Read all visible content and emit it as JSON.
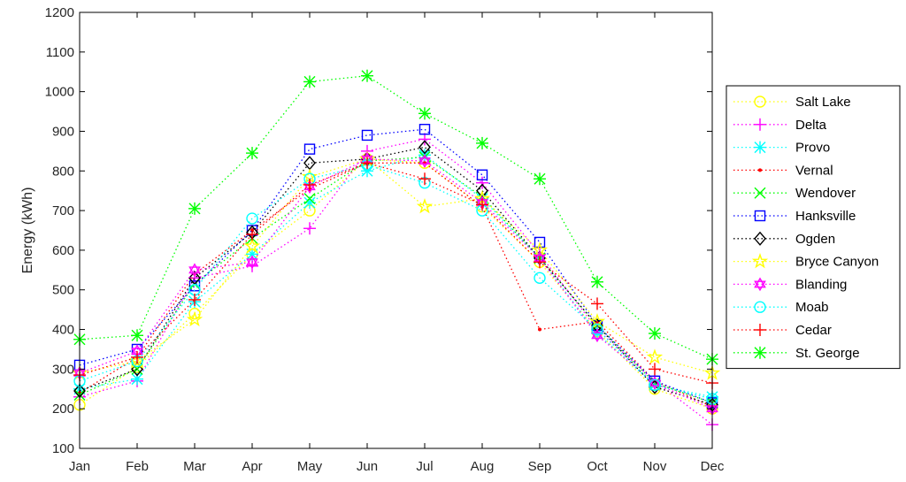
{
  "chart_data": {
    "type": "line",
    "title": "",
    "xlabel": "",
    "ylabel": "Energy (kWh)",
    "categories": [
      "Jan",
      "Feb",
      "Mar",
      "Apr",
      "May",
      "Jun",
      "Jul",
      "Aug",
      "Sep",
      "Oct",
      "Nov",
      "Dec"
    ],
    "ylim": [
      100,
      1200
    ],
    "yticks": [
      100,
      200,
      300,
      400,
      500,
      600,
      700,
      800,
      900,
      1000,
      1100,
      1200
    ],
    "grid": false,
    "legend_position": "right",
    "line_style": "dotted",
    "series": [
      {
        "name": "Salt Lake",
        "color": "#ffff00",
        "marker": "circle",
        "values": [
          210,
          305,
          440,
          590,
          700,
          830,
          820,
          710,
          570,
          395,
          250,
          200
        ]
      },
      {
        "name": "Delta",
        "color": "#ff00ff",
        "marker": "plus",
        "values": [
          230,
          270,
          530,
          560,
          655,
          850,
          880,
          770,
          590,
          400,
          270,
          160
        ]
      },
      {
        "name": "Provo",
        "color": "#00ffff",
        "marker": "asterisk",
        "values": [
          250,
          275,
          470,
          590,
          720,
          800,
          840,
          730,
          580,
          390,
          260,
          230
        ]
      },
      {
        "name": "Vernal",
        "color": "#ff0000",
        "marker": "dot",
        "values": [
          240,
          330,
          540,
          650,
          755,
          820,
          820,
          710,
          400,
          420,
          270,
          205
        ]
      },
      {
        "name": "Wendover",
        "color": "#00ff00",
        "marker": "x",
        "values": [
          235,
          300,
          515,
          630,
          730,
          825,
          835,
          735,
          580,
          410,
          265,
          215
        ]
      },
      {
        "name": "Hanksville",
        "color": "#0000ff",
        "marker": "square",
        "values": [
          310,
          350,
          510,
          650,
          855,
          890,
          905,
          790,
          620,
          410,
          270,
          215
        ]
      },
      {
        "name": "Ogden",
        "color": "#000000",
        "marker": "diamond",
        "values": [
          245,
          300,
          530,
          645,
          820,
          830,
          860,
          750,
          580,
          410,
          255,
          210
        ]
      },
      {
        "name": "Bryce Canyon",
        "color": "#ffff00",
        "marker": "star",
        "values": [
          290,
          320,
          425,
          610,
          785,
          830,
          710,
          730,
          600,
          420,
          330,
          290
        ]
      },
      {
        "name": "Blanding",
        "color": "#ff00ff",
        "marker": "hexagram",
        "values": [
          290,
          345,
          550,
          570,
          760,
          830,
          825,
          720,
          580,
          385,
          265,
          200
        ]
      },
      {
        "name": "Moab",
        "color": "#00ffff",
        "marker": "circle",
        "values": [
          270,
          320,
          500,
          680,
          780,
          815,
          770,
          700,
          530,
          400,
          260,
          225
        ]
      },
      {
        "name": "Cedar",
        "color": "#ff0000",
        "marker": "plus",
        "values": [
          285,
          330,
          475,
          640,
          765,
          820,
          780,
          715,
          570,
          465,
          300,
          265
        ]
      },
      {
        "name": "St. George",
        "color": "#00ff00",
        "marker": "asterisk",
        "values": [
          375,
          385,
          705,
          845,
          1025,
          1040,
          945,
          870,
          780,
          520,
          390,
          325
        ]
      }
    ]
  }
}
